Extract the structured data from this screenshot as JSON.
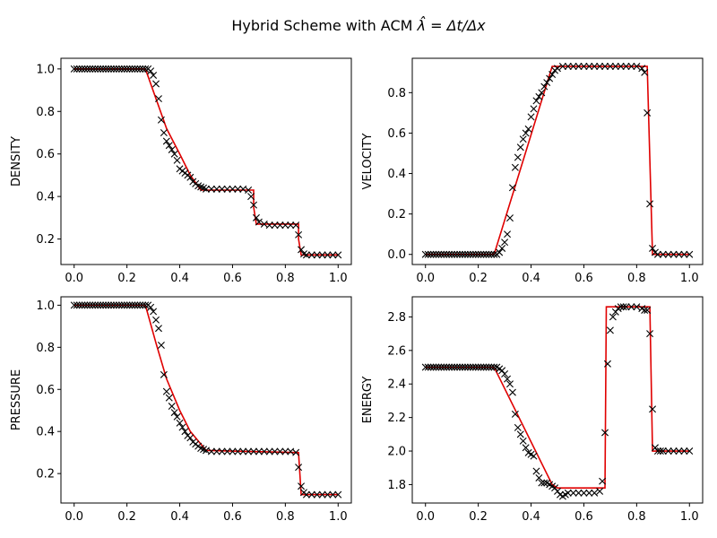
{
  "title_prefix": "Hybrid Scheme with ACM ",
  "title_math": "λ̂ = Δt/Δx",
  "chart_data": [
    {
      "type": "line",
      "ylabel": "DENSITY",
      "xlim": [
        -0.05,
        1.05
      ],
      "ylim": [
        0.08,
        1.05
      ],
      "xticks": [
        "0.0",
        "0.2",
        "0.4",
        "0.6",
        "0.8",
        "1.0"
      ],
      "xtick_values": [
        0,
        0.2,
        0.4,
        0.6,
        0.8,
        1.0
      ],
      "yticks": [
        "0.2",
        "0.4",
        "0.6",
        "0.8",
        "1.0"
      ],
      "ytick_values": [
        0.2,
        0.4,
        0.6,
        0.8,
        1.0
      ],
      "exact": {
        "x": [
          0,
          0.27,
          0.31,
          0.35,
          0.4,
          0.44,
          0.48,
          0.68,
          0.68,
          0.69,
          0.85,
          0.85,
          0.86,
          1.0
        ],
        "y": [
          1.0,
          1.0,
          0.86,
          0.72,
          0.6,
          0.5,
          0.43,
          0.43,
          0.35,
          0.27,
          0.27,
          0.2,
          0.125,
          0.125
        ]
      },
      "numeric": {
        "x": [
          0.29,
          0.3,
          0.31,
          0.32,
          0.33,
          0.34,
          0.35,
          0.36,
          0.37,
          0.38,
          0.39,
          0.4,
          0.41,
          0.42,
          0.43,
          0.44,
          0.45,
          0.46,
          0.47,
          0.48,
          0.49,
          0.5,
          0.52,
          0.54,
          0.56,
          0.58,
          0.6,
          0.62,
          0.64,
          0.66,
          0.67,
          0.68,
          0.69,
          0.7,
          0.72,
          0.74,
          0.76,
          0.78,
          0.8,
          0.82,
          0.84,
          0.85,
          0.86,
          0.87,
          0.88,
          0.9,
          0.92,
          0.94,
          0.96,
          0.98,
          1.0
        ],
        "y": [
          0.99,
          0.97,
          0.93,
          0.86,
          0.76,
          0.7,
          0.66,
          0.64,
          0.62,
          0.6,
          0.57,
          0.53,
          0.52,
          0.51,
          0.5,
          0.49,
          0.47,
          0.46,
          0.45,
          0.445,
          0.44,
          0.435,
          0.435,
          0.435,
          0.435,
          0.435,
          0.435,
          0.435,
          0.435,
          0.43,
          0.4,
          0.36,
          0.3,
          0.28,
          0.27,
          0.265,
          0.265,
          0.265,
          0.265,
          0.265,
          0.265,
          0.22,
          0.15,
          0.13,
          0.125,
          0.125,
          0.125,
          0.125,
          0.125,
          0.125,
          0.125
        ]
      }
    },
    {
      "type": "line",
      "ylabel": "VELOCITY",
      "xlim": [
        -0.05,
        1.05
      ],
      "ylim": [
        -0.05,
        0.97
      ],
      "xticks": [
        "0.0",
        "0.2",
        "0.4",
        "0.6",
        "0.8",
        "1.0"
      ],
      "xtick_values": [
        0,
        0.2,
        0.4,
        0.6,
        0.8,
        1.0
      ],
      "yticks": [
        "0.0",
        "0.2",
        "0.4",
        "0.6",
        "0.8"
      ],
      "ytick_values": [
        0,
        0.2,
        0.4,
        0.6,
        0.8
      ],
      "exact": {
        "x": [
          0,
          0.26,
          0.48,
          0.84,
          0.86,
          1.0
        ],
        "y": [
          0,
          0,
          0.93,
          0.93,
          0,
          0
        ]
      },
      "numeric": {
        "x": [
          0.28,
          0.29,
          0.3,
          0.31,
          0.32,
          0.33,
          0.34,
          0.35,
          0.36,
          0.37,
          0.38,
          0.39,
          0.4,
          0.41,
          0.42,
          0.43,
          0.44,
          0.45,
          0.46,
          0.47,
          0.48,
          0.49,
          0.5,
          0.52,
          0.54,
          0.56,
          0.58,
          0.6,
          0.62,
          0.64,
          0.66,
          0.68,
          0.7,
          0.72,
          0.74,
          0.76,
          0.78,
          0.8,
          0.82,
          0.83,
          0.84,
          0.85,
          0.86,
          0.87,
          0.88,
          0.9,
          0.92,
          0.94,
          0.96,
          0.98,
          1.0
        ],
        "y": [
          0.01,
          0.03,
          0.06,
          0.1,
          0.18,
          0.33,
          0.43,
          0.48,
          0.53,
          0.57,
          0.6,
          0.62,
          0.68,
          0.72,
          0.76,
          0.78,
          0.8,
          0.83,
          0.85,
          0.87,
          0.89,
          0.91,
          0.92,
          0.93,
          0.93,
          0.93,
          0.93,
          0.93,
          0.93,
          0.93,
          0.93,
          0.93,
          0.93,
          0.93,
          0.93,
          0.93,
          0.93,
          0.93,
          0.92,
          0.9,
          0.7,
          0.25,
          0.03,
          0.01,
          0.0,
          0.0,
          0.0,
          0.0,
          0.0,
          0.0,
          0.0
        ]
      }
    },
    {
      "type": "line",
      "ylabel": "PRESSURE",
      "xlim": [
        -0.05,
        1.05
      ],
      "ylim": [
        0.06,
        1.04
      ],
      "xticks": [
        "0.0",
        "0.2",
        "0.4",
        "0.6",
        "0.8",
        "1.0"
      ],
      "xtick_values": [
        0,
        0.2,
        0.4,
        0.6,
        0.8,
        1.0
      ],
      "yticks": [
        "0.2",
        "0.4",
        "0.6",
        "0.8",
        "1.0"
      ],
      "ytick_values": [
        0.2,
        0.4,
        0.6,
        0.8,
        1.0
      ],
      "exact": {
        "x": [
          0,
          0.27,
          0.31,
          0.35,
          0.4,
          0.44,
          0.48,
          0.5,
          0.84,
          0.85,
          0.86,
          1.0
        ],
        "y": [
          1.0,
          1.0,
          0.82,
          0.65,
          0.5,
          0.4,
          0.34,
          0.31,
          0.3,
          0.3,
          0.1,
          0.1
        ]
      },
      "numeric": {
        "x": [
          0.29,
          0.3,
          0.31,
          0.32,
          0.33,
          0.34,
          0.35,
          0.36,
          0.37,
          0.38,
          0.39,
          0.4,
          0.41,
          0.42,
          0.43,
          0.44,
          0.45,
          0.46,
          0.47,
          0.48,
          0.49,
          0.5,
          0.52,
          0.54,
          0.56,
          0.58,
          0.6,
          0.62,
          0.64,
          0.66,
          0.68,
          0.7,
          0.72,
          0.74,
          0.76,
          0.78,
          0.8,
          0.82,
          0.84,
          0.85,
          0.86,
          0.87,
          0.88,
          0.9,
          0.92,
          0.94,
          0.96,
          0.98,
          1.0
        ],
        "y": [
          0.99,
          0.97,
          0.93,
          0.89,
          0.81,
          0.67,
          0.59,
          0.56,
          0.52,
          0.49,
          0.47,
          0.44,
          0.42,
          0.4,
          0.38,
          0.37,
          0.35,
          0.34,
          0.33,
          0.32,
          0.315,
          0.31,
          0.305,
          0.305,
          0.305,
          0.305,
          0.305,
          0.305,
          0.305,
          0.305,
          0.305,
          0.305,
          0.305,
          0.305,
          0.305,
          0.305,
          0.305,
          0.305,
          0.3,
          0.23,
          0.14,
          0.11,
          0.1,
          0.1,
          0.1,
          0.1,
          0.1,
          0.1,
          0.1
        ]
      }
    },
    {
      "type": "line",
      "ylabel": "ENERGY",
      "xlim": [
        -0.05,
        1.05
      ],
      "ylim": [
        1.69,
        2.92
      ],
      "xticks": [
        "0.0",
        "0.2",
        "0.4",
        "0.6",
        "0.8",
        "1.0"
      ],
      "xtick_values": [
        0,
        0.2,
        0.4,
        0.6,
        0.8,
        1.0
      ],
      "yticks": [
        "1.8",
        "2.0",
        "2.2",
        "2.4",
        "2.6",
        "2.8"
      ],
      "ytick_values": [
        1.8,
        2.0,
        2.2,
        2.4,
        2.6,
        2.8
      ],
      "exact": {
        "x": [
          0,
          0.26,
          0.48,
          0.5,
          0.68,
          0.685,
          0.85,
          0.86,
          1.0
        ],
        "y": [
          2.5,
          2.5,
          1.8,
          1.78,
          1.78,
          2.86,
          2.86,
          2.0,
          2.0
        ]
      },
      "numeric": {
        "x": [
          0.28,
          0.29,
          0.3,
          0.31,
          0.32,
          0.33,
          0.34,
          0.35,
          0.36,
          0.37,
          0.38,
          0.39,
          0.4,
          0.41,
          0.42,
          0.43,
          0.44,
          0.45,
          0.46,
          0.47,
          0.48,
          0.49,
          0.5,
          0.51,
          0.52,
          0.53,
          0.54,
          0.56,
          0.58,
          0.6,
          0.62,
          0.64,
          0.66,
          0.67,
          0.68,
          0.69,
          0.7,
          0.71,
          0.72,
          0.73,
          0.74,
          0.75,
          0.76,
          0.78,
          0.8,
          0.82,
          0.83,
          0.84,
          0.85,
          0.86,
          0.87,
          0.88,
          0.89,
          0.9,
          0.92,
          0.94,
          0.96,
          0.98,
          1.0
        ],
        "y": [
          2.49,
          2.48,
          2.46,
          2.43,
          2.4,
          2.35,
          2.22,
          2.14,
          2.1,
          2.06,
          2.02,
          1.99,
          1.98,
          1.97,
          1.88,
          1.84,
          1.81,
          1.81,
          1.81,
          1.8,
          1.79,
          1.78,
          1.76,
          1.74,
          1.73,
          1.74,
          1.75,
          1.75,
          1.75,
          1.75,
          1.75,
          1.75,
          1.76,
          1.82,
          2.11,
          2.52,
          2.72,
          2.8,
          2.83,
          2.85,
          2.86,
          2.86,
          2.86,
          2.86,
          2.86,
          2.85,
          2.84,
          2.84,
          2.7,
          2.25,
          2.02,
          2.0,
          2.0,
          2.0,
          2.0,
          2.0,
          2.0,
          2.0,
          2.0
        ]
      }
    }
  ]
}
